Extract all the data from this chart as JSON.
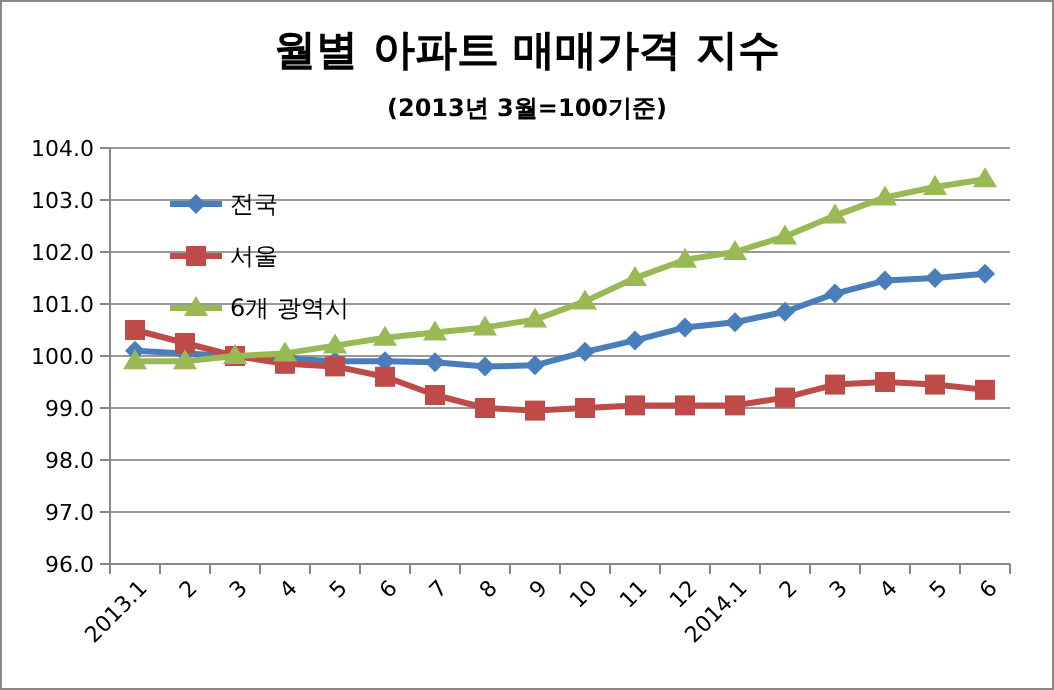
{
  "chart_data": {
    "type": "line",
    "title": "월별 아파트 매매가격 지수",
    "subtitle": "(2013년 3월=100기준)",
    "categories": [
      "2013.1",
      "2",
      "3",
      "4",
      "5",
      "6",
      "7",
      "8",
      "9",
      "10",
      "11",
      "12",
      "2014.1",
      "2",
      "3",
      "4",
      "5",
      "6"
    ],
    "series": [
      {
        "name": "전국",
        "color": "#4a7ebb",
        "marker": "diamond",
        "values": [
          100.1,
          100.05,
          100.0,
          99.95,
          99.9,
          99.9,
          99.88,
          99.8,
          99.82,
          100.08,
          100.3,
          100.55,
          100.65,
          100.85,
          101.2,
          101.45,
          101.5,
          101.58
        ]
      },
      {
        "name": "서울",
        "color": "#be4b48",
        "marker": "square",
        "values": [
          100.5,
          100.25,
          100.0,
          99.85,
          99.8,
          99.6,
          99.25,
          99.0,
          98.95,
          99.0,
          99.05,
          99.05,
          99.05,
          99.2,
          99.45,
          99.5,
          99.45,
          99.35
        ]
      },
      {
        "name": "6개 광역시",
        "color": "#98b954",
        "marker": "triangle",
        "values": [
          99.9,
          99.9,
          100.0,
          100.05,
          100.2,
          100.35,
          100.45,
          100.55,
          100.7,
          101.05,
          101.5,
          101.85,
          102.0,
          102.3,
          102.7,
          103.05,
          103.25,
          103.4
        ]
      }
    ],
    "ylim": [
      96,
      104
    ],
    "yticks": [
      {
        "value": 96,
        "label": "96.0"
      },
      {
        "value": 97,
        "label": "97.0"
      },
      {
        "value": 98,
        "label": "98.0"
      },
      {
        "value": 99,
        "label": "99.0"
      },
      {
        "value": 100,
        "label": "100.0"
      },
      {
        "value": 101,
        "label": "101.0"
      },
      {
        "value": 102,
        "label": "102.0"
      },
      {
        "value": 103,
        "label": "103.0"
      },
      {
        "value": 104,
        "label": "104.0"
      }
    ],
    "grid": "y",
    "legend": "top left"
  }
}
